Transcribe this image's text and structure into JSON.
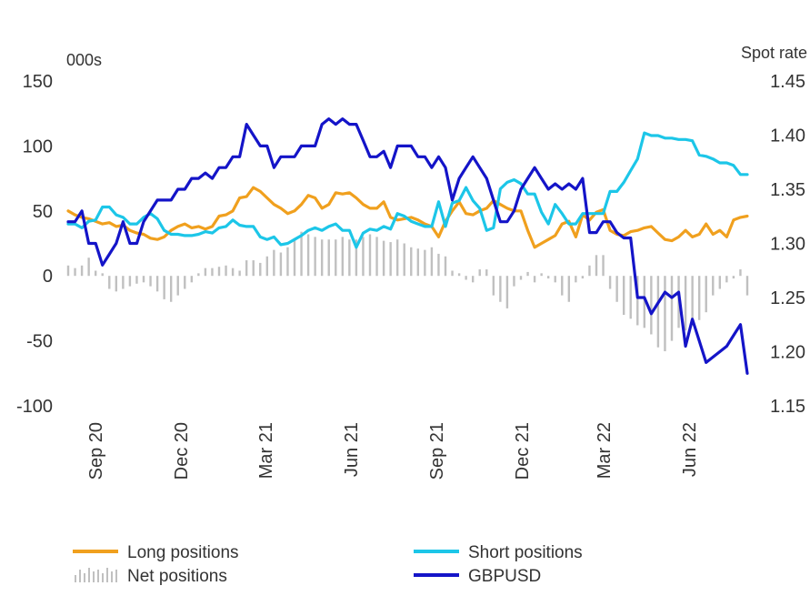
{
  "chart_data": {
    "type": "line",
    "left_axis_unit": "000s",
    "right_axis_unit": "Spot rate",
    "y_left": {
      "ticks": [
        150,
        100,
        50,
        0,
        -50,
        -100
      ],
      "ylim": [
        -100,
        150
      ]
    },
    "y_right": {
      "ticks": [
        "1.45",
        "1.40",
        "1.35",
        "1.30",
        "1.25",
        "1.20",
        "1.15"
      ],
      "ylim": [
        1.15,
        1.45
      ]
    },
    "x_tick_labels": [
      "Sep 20",
      "Dec 20",
      "Mar 21",
      "Jun 21",
      "Sep 21",
      "Dec 21",
      "Mar 22",
      "Jun 22"
    ],
    "legend": {
      "long": "Long positions",
      "short": "Short positions",
      "net": "Net positions",
      "gbpusd": "GBPUSD"
    },
    "colors": {
      "long": "#F0A01E",
      "short": "#1CC6E8",
      "net": "#C0C0C0",
      "gbpusd": "#1414C8"
    },
    "series": [
      {
        "key": "long",
        "name": "Long positions",
        "axis": "left",
        "values": [
          50,
          47,
          45,
          44,
          42,
          40,
          41,
          38,
          39,
          35,
          33,
          32,
          29,
          28,
          30,
          35,
          38,
          40,
          37,
          38,
          36,
          38,
          46,
          47,
          50,
          60,
          61,
          68,
          65,
          60,
          55,
          52,
          48,
          50,
          55,
          62,
          60,
          52,
          55,
          64,
          63,
          64,
          60,
          55,
          52,
          52,
          57,
          45,
          43,
          44,
          45,
          43,
          40,
          38,
          30,
          42,
          50,
          57,
          48,
          47,
          50,
          52,
          58,
          55,
          52,
          50,
          50,
          35,
          22,
          25,
          28,
          31,
          40,
          42,
          30,
          47,
          43,
          49,
          51,
          35,
          32,
          31,
          34,
          35,
          37,
          38,
          33,
          28,
          27,
          30,
          35,
          30,
          32,
          40,
          32,
          35,
          30,
          43,
          45,
          46
        ]
      },
      {
        "key": "short",
        "name": "Short positions",
        "axis": "left",
        "values": [
          40,
          40,
          37,
          42,
          43,
          53,
          53,
          47,
          45,
          40,
          40,
          45,
          48,
          44,
          35,
          32,
          32,
          31,
          31,
          32,
          34,
          33,
          37,
          38,
          43,
          39,
          38,
          38,
          30,
          28,
          30,
          24,
          25,
          28,
          31,
          35,
          37,
          35,
          38,
          40,
          35,
          35,
          22,
          33,
          36,
          35,
          38,
          36,
          48,
          46,
          42,
          40,
          38,
          38,
          57,
          38,
          56,
          58,
          68,
          58,
          52,
          35,
          37,
          67,
          72,
          74,
          71,
          63,
          63,
          49,
          40,
          55,
          48,
          40,
          40,
          48,
          48,
          48,
          48,
          65,
          65,
          72,
          81,
          90,
          110,
          108,
          108,
          106,
          106,
          105,
          105,
          104,
          93,
          92,
          90,
          87,
          87,
          85,
          78,
          78
        ]
      },
      {
        "key": "gbpusd",
        "name": "GBPUSD",
        "axis": "right",
        "values": [
          1.32,
          1.32,
          1.33,
          1.3,
          1.3,
          1.28,
          1.29,
          1.3,
          1.32,
          1.3,
          1.3,
          1.32,
          1.33,
          1.34,
          1.34,
          1.34,
          1.35,
          1.35,
          1.36,
          1.36,
          1.365,
          1.36,
          1.37,
          1.37,
          1.38,
          1.38,
          1.41,
          1.4,
          1.39,
          1.39,
          1.37,
          1.38,
          1.38,
          1.38,
          1.39,
          1.39,
          1.39,
          1.41,
          1.415,
          1.41,
          1.415,
          1.41,
          1.41,
          1.395,
          1.38,
          1.38,
          1.385,
          1.37,
          1.39,
          1.39,
          1.39,
          1.38,
          1.38,
          1.37,
          1.38,
          1.37,
          1.34,
          1.36,
          1.37,
          1.38,
          1.37,
          1.36,
          1.34,
          1.32,
          1.32,
          1.33,
          1.35,
          1.36,
          1.37,
          1.36,
          1.35,
          1.355,
          1.35,
          1.355,
          1.35,
          1.36,
          1.31,
          1.31,
          1.32,
          1.32,
          1.31,
          1.305,
          1.305,
          1.25,
          1.25,
          1.235,
          1.245,
          1.255,
          1.25,
          1.255,
          1.205,
          1.23,
          1.21,
          1.19,
          1.195,
          1.2,
          1.205,
          1.215,
          1.225,
          1.18
        ]
      },
      {
        "key": "net",
        "name": "Net positions",
        "axis": "left",
        "values": [
          8,
          6,
          8,
          14,
          4,
          2,
          -10,
          -12,
          -10,
          -8,
          -6,
          -5,
          -8,
          -12,
          -18,
          -20,
          -15,
          -10,
          -5,
          2,
          6,
          6,
          7,
          8,
          6,
          4,
          12,
          12,
          10,
          15,
          20,
          18,
          22,
          28,
          34,
          32,
          30,
          28,
          28,
          28,
          30,
          28,
          28,
          30,
          32,
          30,
          27,
          26,
          28,
          25,
          22,
          21,
          20,
          22,
          17,
          15,
          4,
          2,
          -3,
          -5,
          5,
          5,
          -15,
          -20,
          -25,
          -8,
          -3,
          3,
          -5,
          2,
          -2,
          -5,
          -15,
          -20,
          -5,
          -2,
          8,
          16,
          16,
          -10,
          -20,
          -30,
          -33,
          -38,
          -40,
          -45,
          -55,
          -58,
          -50,
          -40,
          -42,
          -38,
          -34,
          -28,
          -15,
          -10,
          -5,
          -2,
          5,
          -15
        ]
      }
    ],
    "grid": false
  }
}
